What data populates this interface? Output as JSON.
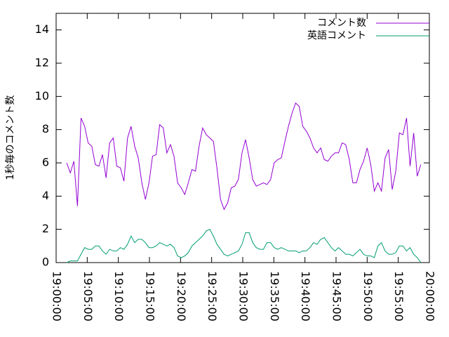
{
  "chart_data": {
    "type": "line",
    "ylabel": "1秒毎のコメント数",
    "xlim": [
      0,
      60
    ],
    "ylim": [
      0,
      15
    ],
    "yticks": [
      0,
      2,
      4,
      6,
      8,
      10,
      12,
      14
    ],
    "xticks": [
      {
        "value": 0,
        "label": "19:00:00"
      },
      {
        "value": 5,
        "label": "19:05:00"
      },
      {
        "value": 10,
        "label": "19:10:00"
      },
      {
        "value": 15,
        "label": "19:15:00"
      },
      {
        "value": 20,
        "label": "19:20:00"
      },
      {
        "value": 25,
        "label": "19:25:00"
      },
      {
        "value": 30,
        "label": "19:30:00"
      },
      {
        "value": 35,
        "label": "19:35:00"
      },
      {
        "value": 40,
        "label": "19:40:00"
      },
      {
        "value": 45,
        "label": "19:45:00"
      },
      {
        "value": 50,
        "label": "19:50:00"
      },
      {
        "value": 55,
        "label": "19:55:00"
      },
      {
        "value": 60,
        "label": "20:00:00"
      }
    ],
    "legend": "top-right",
    "x": [
      1.7,
      2.28,
      2.85,
      3.43,
      4.0,
      4.58,
      5.15,
      5.73,
      6.3,
      6.88,
      7.45,
      8.03,
      8.6,
      9.18,
      9.75,
      10.33,
      10.9,
      11.48,
      12.05,
      12.63,
      13.2,
      13.78,
      14.35,
      14.93,
      15.5,
      16.08,
      16.65,
      17.23,
      17.8,
      18.38,
      18.95,
      19.53,
      20.1,
      20.68,
      21.25,
      21.83,
      22.4,
      22.98,
      23.55,
      24.13,
      24.7,
      25.28,
      25.85,
      26.43,
      27.0,
      27.58,
      28.15,
      28.73,
      29.3,
      29.88,
      30.45,
      31.03,
      31.6,
      32.18,
      32.75,
      33.33,
      33.9,
      34.48,
      35.05,
      35.63,
      36.2,
      36.78,
      37.35,
      37.93,
      38.5,
      39.08,
      39.65,
      40.23,
      40.8,
      41.38,
      41.95,
      42.53,
      43.1,
      43.68,
      44.25,
      44.83,
      45.4,
      45.98,
      46.55,
      47.13,
      47.7,
      48.28,
      48.85,
      49.43,
      50.0,
      50.58,
      51.15,
      51.73,
      52.3,
      52.88,
      53.45,
      54.03,
      54.6,
      55.18,
      55.75,
      56.33,
      56.9,
      57.48,
      58.05,
      58.63
    ],
    "series": [
      {
        "name": "コメント数",
        "color": "#9400d3",
        "values": [
          6.0,
          5.4,
          6.1,
          3.4,
          8.7,
          8.2,
          7.2,
          7.0,
          5.9,
          5.8,
          6.5,
          5.1,
          7.2,
          7.5,
          5.8,
          5.7,
          4.9,
          7.5,
          8.2,
          7.0,
          6.3,
          4.8,
          3.8,
          4.8,
          6.4,
          6.5,
          8.3,
          8.1,
          6.6,
          7.1,
          6.4,
          4.8,
          4.5,
          4.1,
          4.8,
          5.6,
          5.5,
          7.0,
          8.1,
          7.7,
          7.5,
          7.3,
          5.7,
          3.8,
          3.2,
          3.6,
          4.5,
          4.6,
          5.0,
          6.6,
          7.4,
          6.3,
          5.0,
          4.6,
          4.7,
          4.8,
          4.7,
          5.0,
          6.0,
          6.2,
          6.3,
          7.3,
          8.2,
          9.0,
          9.6,
          9.4,
          8.2,
          7.9,
          7.5,
          6.9,
          6.6,
          6.9,
          6.2,
          6.1,
          6.4,
          6.6,
          6.6,
          7.2,
          7.1,
          6.2,
          4.8,
          4.8,
          5.6,
          6.1,
          6.9,
          5.9,
          4.3,
          4.8,
          4.3,
          6.3,
          6.8,
          4.4,
          5.5,
          7.8,
          7.7,
          8.7,
          5.8,
          7.8,
          5.2,
          5.9
        ]
      },
      {
        "name": "英語コメント",
        "color": "#009e73",
        "values": [
          0.0,
          0.1,
          0.1,
          0.1,
          0.5,
          0.9,
          0.8,
          0.8,
          1.0,
          1.0,
          0.7,
          0.5,
          0.8,
          0.7,
          0.7,
          0.9,
          0.8,
          1.1,
          1.6,
          1.2,
          1.4,
          1.4,
          1.2,
          0.9,
          0.9,
          1.0,
          1.2,
          1.1,
          1.0,
          1.1,
          0.9,
          0.4,
          0.3,
          0.4,
          0.6,
          1.0,
          1.2,
          1.4,
          1.6,
          1.9,
          2.0,
          1.6,
          1.1,
          0.8,
          0.5,
          0.4,
          0.5,
          0.6,
          0.7,
          1.1,
          1.8,
          1.8,
          1.2,
          0.9,
          0.8,
          0.8,
          1.2,
          1.2,
          0.9,
          0.8,
          0.9,
          0.8,
          0.7,
          0.7,
          0.7,
          0.6,
          0.7,
          0.7,
          0.9,
          1.2,
          1.1,
          1.4,
          1.5,
          1.2,
          0.9,
          0.7,
          0.9,
          0.7,
          0.5,
          0.5,
          0.4,
          0.6,
          0.8,
          0.5,
          0.4,
          0.4,
          0.3,
          1.0,
          1.2,
          0.7,
          0.5,
          0.5,
          0.6,
          1.0,
          1.0,
          0.7,
          0.9,
          0.5,
          0.3,
          0.0
        ]
      }
    ]
  }
}
